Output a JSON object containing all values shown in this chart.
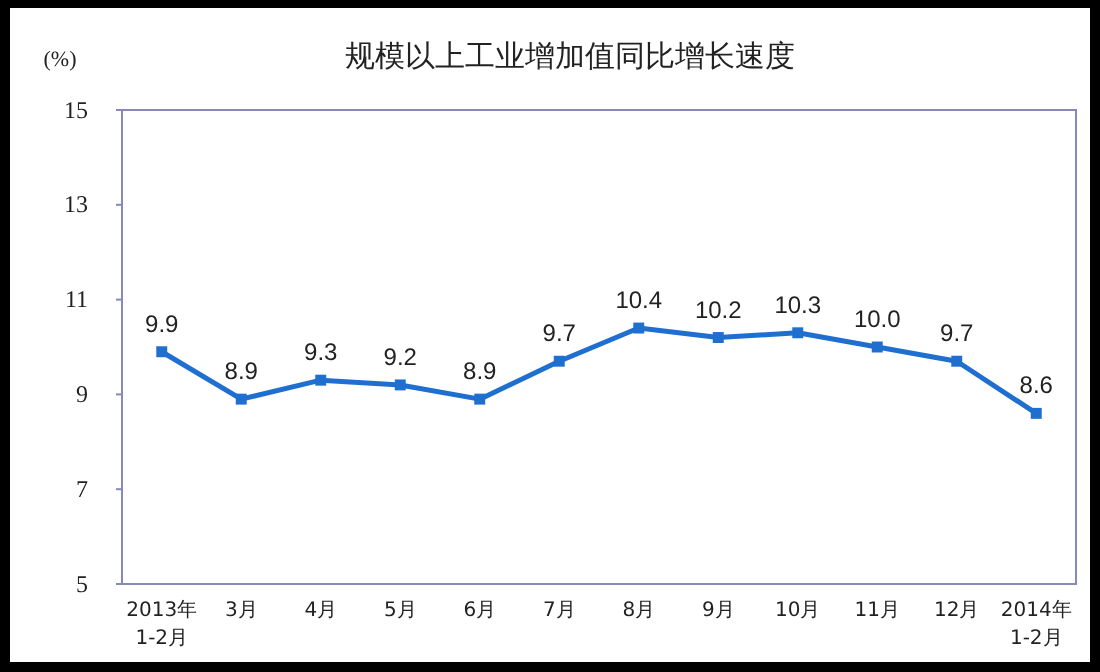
{
  "chart_data": {
    "type": "line",
    "title": "规模以上工业增加值同比增长速度",
    "ylabel": "(%)",
    "categories": [
      "2013年\n1-2月",
      "3月",
      "4月",
      "5月",
      "6月",
      "7月",
      "8月",
      "9月",
      "10月",
      "11月",
      "12月",
      "2014年\n1-2月"
    ],
    "series": [
      {
        "color": "#1f6fd0",
        "values": [
          9.9,
          8.9,
          9.3,
          9.2,
          8.9,
          9.7,
          10.4,
          10.2,
          10.3,
          10.0,
          9.7,
          8.6
        ],
        "value_labels": [
          "9.9",
          "8.9",
          "9.3",
          "9.2",
          "8.9",
          "9.7",
          "10.4",
          "10.2",
          "10.3",
          "10.0",
          "9.7",
          "8.6"
        ]
      }
    ],
    "ylim": [
      5,
      15
    ],
    "yticks": [
      5,
      7,
      9,
      11,
      13,
      15
    ],
    "marker": "square",
    "line_style": "solid",
    "grid": false
  }
}
